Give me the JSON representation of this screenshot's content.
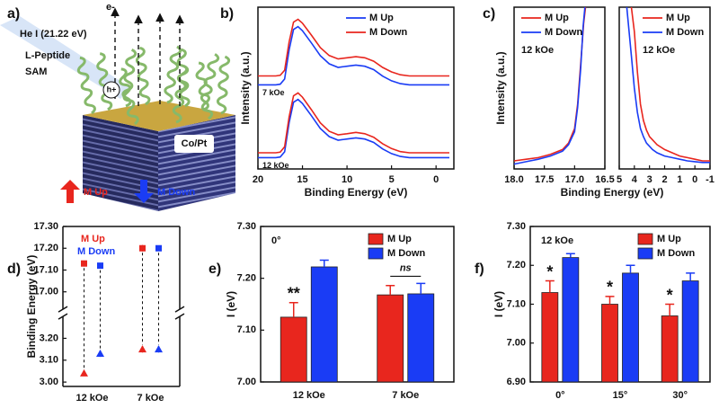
{
  "schematic": {
    "label": "a)",
    "source": "He I (21.22 eV)",
    "electron": "e-",
    "peptide": "L-Peptide",
    "sam": "SAM",
    "hole": "h+",
    "substrate": "Co/Pt",
    "up": "M Up",
    "down": "M Down"
  },
  "chart_data": [
    {
      "type": "line",
      "label": "b)",
      "xlabel": "Binding Energy (eV)",
      "ylabel": "Intensity (a.u.)",
      "legend": "upper right",
      "xlim": [
        20,
        -2
      ],
      "xticks": [
        20,
        15,
        10,
        5,
        0
      ],
      "ylim": [
        0,
        10
      ],
      "x": [
        20,
        19,
        18,
        17.5,
        17,
        16.5,
        16,
        15.5,
        15,
        14,
        13,
        12,
        11,
        10,
        9,
        8,
        7,
        6,
        5,
        4,
        3,
        2,
        1,
        0,
        -1.5
      ],
      "series": [
        {
          "name": "M Up",
          "color": "#1a3cf5"
        },
        {
          "name": "M Down",
          "color": "#e8261e"
        }
      ],
      "groups": [
        {
          "label": "7 kOe",
          "values": [
            [
              5.2,
              5.2,
              5.2,
              5.24,
              5.56,
              7.36,
              8.62,
              8.8,
              8.55,
              7.79,
              7.0,
              6.5,
              6.28,
              6.35,
              6.42,
              6.35,
              6.14,
              5.74,
              5.45,
              5.27,
              5.2,
              5.2,
              5.2,
              5.2,
              5.2
            ],
            [
              5.75,
              5.75,
              5.75,
              5.79,
              6.1,
              7.85,
              9.08,
              9.25,
              9.01,
              8.27,
              7.5,
              7.01,
              6.8,
              6.87,
              6.94,
              6.87,
              6.66,
              6.28,
              6.0,
              5.82,
              5.75,
              5.75,
              5.75,
              5.75,
              5.75
            ]
          ]
        },
        {
          "label": "12 kOe",
          "values": [
            [
              0.7,
              0.7,
              0.7,
              0.74,
              1.06,
              2.86,
              4.12,
              4.3,
              4.05,
              3.29,
              2.5,
              2.0,
              1.78,
              1.85,
              1.92,
              1.85,
              1.64,
              1.24,
              0.95,
              0.77,
              0.7,
              0.7,
              0.7,
              0.7,
              0.7
            ],
            [
              1.0,
              1.0,
              1.0,
              1.04,
              1.37,
              3.22,
              4.52,
              4.7,
              4.44,
              3.66,
              2.85,
              2.33,
              2.11,
              2.18,
              2.26,
              2.18,
              1.96,
              1.56,
              1.26,
              1.07,
              1.0,
              1.0,
              1.0,
              1.0,
              1.0
            ]
          ]
        }
      ]
    },
    {
      "type": "line",
      "label": "c)",
      "xlabel": "Binding Energy (eV)",
      "ylabel": "Intensity (a.u.)",
      "ylim": [
        0,
        10
      ],
      "panels": [
        {
          "xlim": [
            18,
            16.5
          ],
          "xticks": [
            {
              "value": 18,
              "label": "18.0"
            },
            17.5,
            {
              "value": 17,
              "label": "17.0"
            },
            16.5
          ],
          "legend": "upper left",
          "note": "12 kOe",
          "series": [
            {
              "name": "M Up",
              "color": "#e8261e",
              "x": [
                18,
                17.8,
                17.6,
                17.4,
                17.2,
                17.1,
                17.0,
                16.95,
                16.9,
                16.85,
                16.82
              ],
              "values": [
                0.5,
                0.6,
                0.7,
                0.9,
                1.2,
                1.6,
                2.5,
                4,
                6.5,
                9,
                10
              ]
            },
            {
              "name": "M Down",
              "color": "#1a3cf5",
              "x": [
                18,
                17.8,
                17.6,
                17.4,
                17.2,
                17.1,
                17.0,
                16.95,
                16.9,
                16.86,
                16.83
              ],
              "values": [
                0.3,
                0.45,
                0.6,
                0.8,
                1.1,
                1.5,
                2.3,
                3.8,
                6.2,
                8.8,
                10
              ]
            }
          ]
        },
        {
          "xlim": [
            5,
            -1
          ],
          "xticks": [
            5,
            4,
            3,
            2,
            1,
            0,
            -1
          ],
          "legend": "upper right",
          "note": "12 kOe",
          "series": [
            {
              "name": "M Up",
              "color": "#e8261e",
              "x": [
                4.2,
                4,
                3.8,
                3.6,
                3.4,
                3.2,
                3,
                2.8,
                2.5,
                2,
                1.5,
                1,
                0.5,
                0,
                -0.5,
                -1
              ],
              "values": [
                10,
                8.5,
                6,
                4,
                3,
                2.4,
                2,
                1.8,
                1.5,
                1.2,
                1.0,
                0.8,
                0.7,
                0.6,
                0.5,
                0.5
              ]
            },
            {
              "name": "M Down",
              "color": "#1a3cf5",
              "x": [
                4.5,
                4.2,
                4,
                3.8,
                3.6,
                3.4,
                3.2,
                3,
                2.8,
                2.5,
                2,
                1.5,
                1,
                0.5,
                0,
                -0.5,
                -1
              ],
              "values": [
                10,
                7,
                5,
                3.5,
                2.5,
                2,
                1.6,
                1.4,
                1.2,
                1.0,
                0.8,
                0.7,
                0.6,
                0.5,
                0.45,
                0.4,
                0.4
              ]
            }
          ]
        }
      ]
    },
    {
      "type": "scatter",
      "label": "d)",
      "ylabel": "Binding Energy (eV)",
      "categories": [
        "12 kOe",
        "7 kOe"
      ],
      "ylim_upper": [
        16.92,
        17.3
      ],
      "yticks_upper": [
        {
          "value": 17,
          "label": "17.00"
        },
        {
          "value": 17.1,
          "label": "17.10"
        },
        {
          "value": 17.2,
          "label": "17.20"
        },
        {
          "value": 17.3,
          "label": "17.30"
        }
      ],
      "ylim_lower": [
        2.98,
        3.3
      ],
      "yticks_lower": [
        {
          "value": 3,
          "label": "3.00"
        },
        {
          "value": 3.1,
          "label": "3.10"
        },
        {
          "value": 3.2,
          "label": "3.20"
        }
      ],
      "series": [
        {
          "name": "M Up",
          "color": "#e8261e",
          "upper_values": [
            17.13,
            17.2
          ],
          "upper_errors": [
            0.01,
            0.015
          ],
          "lower_values": [
            3.04,
            3.15
          ],
          "lower_errors": [
            0.01,
            0.015
          ]
        },
        {
          "name": "M Down",
          "color": "#1a3cf5",
          "upper_values": [
            17.12,
            17.2
          ],
          "upper_errors": [
            0.01,
            0.01
          ],
          "lower_values": [
            3.13,
            3.15
          ],
          "lower_errors": [
            0.015,
            0.015
          ]
        }
      ]
    },
    {
      "type": "bar",
      "label": "e)",
      "ylabel": "I (eV)",
      "note": "0°",
      "categories": [
        "12 kOe",
        "7 kOe"
      ],
      "ylim": [
        7.0,
        7.3
      ],
      "yticks": [
        {
          "value": 7,
          "label": "7.00"
        },
        {
          "value": 7.1,
          "label": "7.10"
        },
        {
          "value": 7.2,
          "label": "7.20"
        },
        {
          "value": 7.3,
          "label": "7.30"
        }
      ],
      "series": [
        {
          "name": "M Up",
          "color": "#e8261e",
          "values": [
            7.125,
            7.168
          ],
          "errors": [
            0.028,
            0.018
          ],
          "marks": [
            "**",
            null
          ]
        },
        {
          "name": "M Down",
          "color": "#1a3cf5",
          "values": [
            7.222,
            7.17
          ],
          "errors": [
            0.013,
            0.02
          ]
        }
      ],
      "bracket_labels": [
        null,
        "ns"
      ]
    },
    {
      "type": "bar",
      "label": "f)",
      "ylabel": "I (eV)",
      "note": "12 kOe",
      "categories": [
        "0°",
        "15°",
        "30°"
      ],
      "ylim": [
        6.9,
        7.3
      ],
      "yticks": [
        {
          "value": 6.9,
          "label": "6.90"
        },
        {
          "value": 7,
          "label": "7.00"
        },
        {
          "value": 7.1,
          "label": "7.10"
        },
        {
          "value": 7.2,
          "label": "7.20"
        },
        {
          "value": 7.3,
          "label": "7.30"
        }
      ],
      "series": [
        {
          "name": "M Up",
          "color": "#e8261e",
          "values": [
            7.13,
            7.1,
            7.07
          ],
          "errors": [
            0.03,
            0.02,
            0.03
          ],
          "marks": [
            "*",
            "*",
            "*"
          ]
        },
        {
          "name": "M Down",
          "color": "#1a3cf5",
          "values": [
            7.22,
            7.18,
            7.16
          ],
          "errors": [
            0.01,
            0.02,
            0.02
          ]
        }
      ]
    }
  ]
}
